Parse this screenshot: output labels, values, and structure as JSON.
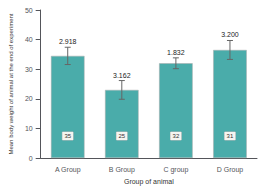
{
  "chart_data": {
    "type": "bar",
    "xlabel": "Group of animal",
    "ylabel": "Mean body weight of animal at the end of experiment",
    "categories": [
      "A Group",
      "B Group",
      "C group",
      "D Group"
    ],
    "values": [
      34.5,
      23.0,
      32.0,
      36.5
    ],
    "errors": [
      2.918,
      3.162,
      1.832,
      3.2
    ],
    "error_labels": [
      "2.918",
      "3.162",
      "1.832",
      "3.200"
    ],
    "n": [
      35,
      25,
      32,
      31
    ],
    "color": "#4aacaa",
    "ylim": [
      0,
      50
    ],
    "yticks": [
      0,
      10,
      20,
      30,
      40,
      50
    ],
    "grid": false
  }
}
